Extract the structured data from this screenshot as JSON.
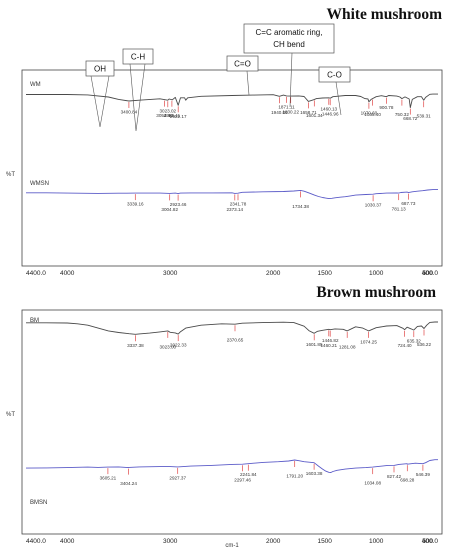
{
  "colors": {
    "sample_1": "#4a4a4a",
    "sample_2": "#5b5bc8",
    "peak_marker": "#e04545",
    "frame": "#444444"
  },
  "chart_data": [
    {
      "type": "line",
      "title": "White mushroom",
      "xlabel": "",
      "ylabel": "%T",
      "xlim": [
        4400,
        400
      ],
      "xticks": [
        "4400.0",
        "4000",
        "3000",
        "2000",
        "1500",
        "1000",
        "500",
        "400.0"
      ],
      "series": [
        {
          "name": "WM",
          "points": [
            [
              4400,
              0.95
            ],
            [
              4000,
              0.95
            ],
            [
              3800,
              0.93
            ],
            [
              3600,
              0.82
            ],
            [
              3500,
              0.7
            ],
            [
              3400.84,
              0.62
            ],
            [
              3300,
              0.66
            ],
            [
              3100,
              0.73
            ],
            [
              3023,
              0.66
            ],
            [
              3010,
              0.72
            ],
            [
              2980,
              0.68
            ],
            [
              2950,
              0.8
            ],
            [
              2922.17,
              0.4
            ],
            [
              2900,
              0.78
            ],
            [
              2860,
              0.78
            ],
            [
              2850,
              0.66
            ],
            [
              2830,
              0.78
            ],
            [
              2700,
              0.86
            ],
            [
              2400,
              0.9
            ],
            [
              2200,
              0.92
            ],
            [
              2000,
              0.94
            ],
            [
              1940.08,
              0.86
            ],
            [
              1900,
              0.92
            ],
            [
              1871.11,
              0.88
            ],
            [
              1830.22,
              0.87
            ],
            [
              1750,
              0.88
            ],
            [
              1700,
              0.85
            ],
            [
              1658.71,
              0.6
            ],
            [
              1610,
              0.68
            ],
            [
              1600.34,
              0.7
            ],
            [
              1580,
              0.74
            ],
            [
              1520,
              0.77
            ],
            [
              1460.13,
              0.78
            ],
            [
              1446,
              0.76
            ],
            [
              1420,
              0.84
            ],
            [
              1300,
              0.9
            ],
            [
              1200,
              0.9
            ],
            [
              1150,
              0.85
            ],
            [
              1110,
              0.74
            ],
            [
              1080,
              0.72
            ],
            [
              1070.6,
              0.58
            ],
            [
              1050,
              0.7
            ],
            [
              1000,
              0.84
            ],
            [
              950,
              0.89
            ],
            [
              900.78,
              0.84
            ],
            [
              880,
              0.9
            ],
            [
              800,
              0.87
            ],
            [
              770,
              0.82
            ],
            [
              750.32,
              0.74
            ],
            [
              720,
              0.83
            ],
            [
              680,
              0.72
            ],
            [
              668.72,
              0.28
            ],
            [
              650,
              0.7
            ],
            [
              600,
              0.84
            ],
            [
              560,
              0.84
            ],
            [
              539.31,
              0.66
            ],
            [
              520,
              0.8
            ],
            [
              480,
              0.96
            ],
            [
              450,
              0.97
            ],
            [
              400,
              0.97
            ]
          ],
          "peak_labels": [
            "3400.84",
            "3054.60",
            "3023.02",
            "2983.41",
            "2922.17",
            "1940.08",
            "1871.11",
            "1830.22",
            "1658.71",
            "1601.34",
            "1460.13",
            "1446.96",
            "1070.60",
            "1035.40",
            "900.78",
            "750.32",
            "668.72",
            "539.31"
          ]
        },
        {
          "name": "WMSN",
          "points": [
            [
              4400,
              0.42
            ],
            [
              4200,
              0.42
            ],
            [
              4000,
              0.4
            ],
            [
              3700,
              0.38
            ],
            [
              3500,
              0.39
            ],
            [
              3339.16,
              0.4
            ],
            [
              3200,
              0.4
            ],
            [
              3100,
              0.4
            ],
            [
              3004.82,
              0.38
            ],
            [
              2950,
              0.4
            ],
            [
              2923.46,
              0.37
            ],
            [
              2900,
              0.4
            ],
            [
              2800,
              0.41
            ],
            [
              2600,
              0.41
            ],
            [
              2400,
              0.42
            ],
            [
              2373.14,
              0.38
            ],
            [
              2341.78,
              0.39
            ],
            [
              2300,
              0.45
            ],
            [
              2100,
              0.48
            ],
            [
              1900,
              0.5
            ],
            [
              1800,
              0.53
            ],
            [
              1734.38,
              0.57
            ],
            [
              1700,
              0.52
            ],
            [
              1650,
              0.4
            ],
            [
              1600,
              0.27
            ],
            [
              1560,
              0.18
            ],
            [
              1520,
              0.12
            ],
            [
              1490,
              0.08
            ],
            [
              1460,
              0.05
            ],
            [
              1430,
              0.07
            ],
            [
              1400,
              0.1
            ],
            [
              1350,
              0.14
            ],
            [
              1300,
              0.17
            ],
            [
              1250,
              0.22
            ],
            [
              1200,
              0.27
            ],
            [
              1100,
              0.31
            ],
            [
              1030.37,
              0.33
            ],
            [
              1000,
              0.36
            ],
            [
              900,
              0.4
            ],
            [
              800,
              0.41
            ],
            [
              781.13,
              0.4
            ],
            [
              760,
              0.44
            ],
            [
              700,
              0.46
            ],
            [
              687.73,
              0.43
            ],
            [
              650,
              0.48
            ],
            [
              600,
              0.52
            ],
            [
              550,
              0.55
            ],
            [
              500,
              0.6
            ],
            [
              450,
              0.62
            ],
            [
              400,
              0.62
            ]
          ],
          "peak_labels": [
            "3339.16",
            "3004.82",
            "2923.46",
            "2373.14",
            "2341.78",
            "1734.38",
            "1030.37",
            "781.13",
            "687.73"
          ]
        }
      ],
      "annotations": [
        "OH",
        "C-H",
        "C=O",
        "C=C aromatic ring,",
        "CH bend",
        "C-O"
      ]
    },
    {
      "type": "line",
      "title": "Brown mushroom",
      "xlabel": "cm-1",
      "ylabel": "%T",
      "xlim": [
        4400,
        400
      ],
      "xticks": [
        "4400.0",
        "4000",
        "3000",
        "2000",
        "1500",
        "1000",
        "500",
        "400.0"
      ],
      "series": [
        {
          "name": "BM",
          "points": [
            [
              4400,
              0.92
            ],
            [
              4200,
              0.92
            ],
            [
              4000,
              0.91
            ],
            [
              3900,
              0.87
            ],
            [
              3800,
              0.8
            ],
            [
              3700,
              0.66
            ],
            [
              3600,
              0.52
            ],
            [
              3500,
              0.44
            ],
            [
              3400,
              0.38
            ],
            [
              3337.38,
              0.35
            ],
            [
              3300,
              0.37
            ],
            [
              3200,
              0.41
            ],
            [
              3100,
              0.47
            ],
            [
              3023.0,
              0.52
            ],
            [
              3000,
              0.45
            ],
            [
              2950,
              0.42
            ],
            [
              2922.33,
              0.36
            ],
            [
              2900,
              0.48
            ],
            [
              2850,
              0.66
            ],
            [
              2700,
              0.8
            ],
            [
              2500,
              0.87
            ],
            [
              2370.65,
              0.85
            ],
            [
              2300,
              0.9
            ],
            [
              2100,
              0.93
            ],
            [
              1900,
              0.95
            ],
            [
              1800,
              0.93
            ],
            [
              1700,
              0.75
            ],
            [
              1650,
              0.52
            ],
            [
              1601.85,
              0.4
            ],
            [
              1570,
              0.5
            ],
            [
              1520,
              0.55
            ],
            [
              1460.21,
              0.6
            ],
            [
              1446.82,
              0.58
            ],
            [
              1400,
              0.62
            ],
            [
              1320,
              0.6
            ],
            [
              1281.08,
              0.52
            ],
            [
              1250,
              0.6
            ],
            [
              1200,
              0.72
            ],
            [
              1130,
              0.66
            ],
            [
              1074.25,
              0.52
            ],
            [
              1000,
              0.68
            ],
            [
              900,
              0.76
            ],
            [
              800,
              0.78
            ],
            [
              740,
              0.65
            ],
            [
              724.4,
              0.58
            ],
            [
              700,
              0.7
            ],
            [
              660,
              0.62
            ],
            [
              635.32,
              0.56
            ],
            [
              600,
              0.74
            ],
            [
              560,
              0.76
            ],
            [
              536.22,
              0.64
            ],
            [
              510,
              0.8
            ],
            [
              480,
              0.94
            ],
            [
              430,
              0.96
            ],
            [
              400,
              0.96
            ]
          ],
          "peak_labels": [
            "3337.38",
            "3023.00",
            "2922.33",
            "2370.65",
            "1601.85",
            "1460.21",
            "1446.82",
            "1281.08",
            "1074.25",
            "724.40",
            "635.32",
            "536.22"
          ]
        },
        {
          "name": "BMSN",
          "points": [
            [
              4400,
              0.22
            ],
            [
              4200,
              0.23
            ],
            [
              4000,
              0.24
            ],
            [
              3800,
              0.26
            ],
            [
              3700,
              0.25
            ],
            [
              3605.21,
              0.26
            ],
            [
              3500,
              0.27
            ],
            [
              3400,
              0.25
            ],
            [
              3404.24,
              0.24
            ],
            [
              3300,
              0.27
            ],
            [
              3100,
              0.28
            ],
            [
              3000,
              0.28
            ],
            [
              2927.37,
              0.27
            ],
            [
              2800,
              0.3
            ],
            [
              2600,
              0.33
            ],
            [
              2400,
              0.37
            ],
            [
              2297.46,
              0.38
            ],
            [
              2241.84,
              0.4
            ],
            [
              2100,
              0.45
            ],
            [
              1950,
              0.48
            ],
            [
              1850,
              0.51
            ],
            [
              1791.2,
              0.55
            ],
            [
              1750,
              0.52
            ],
            [
              1700,
              0.48
            ],
            [
              1603.38,
              0.44
            ],
            [
              1560,
              0.3
            ],
            [
              1520,
              0.18
            ],
            [
              1490,
              0.1
            ],
            [
              1460,
              0.05
            ],
            [
              1440,
              0.04
            ],
            [
              1420,
              0.08
            ],
            [
              1380,
              0.13
            ],
            [
              1300,
              0.18
            ],
            [
              1200,
              0.22
            ],
            [
              1100,
              0.24
            ],
            [
              1034.08,
              0.26
            ],
            [
              900,
              0.32
            ],
            [
              827.42,
              0.33
            ],
            [
              780,
              0.37
            ],
            [
              700,
              0.4
            ],
            [
              698.28,
              0.38
            ],
            [
              620,
              0.42
            ],
            [
              546.39,
              0.4
            ],
            [
              520,
              0.44
            ],
            [
              480,
              0.53
            ],
            [
              430,
              0.56
            ],
            [
              400,
              0.56
            ]
          ],
          "peak_labels": [
            "3605.21",
            "3404.24",
            "2927.37",
            "2297.46",
            "2241.84",
            "1791.20",
            "1603.38",
            "1034.08",
            "827.42",
            "698.28",
            "546.39"
          ]
        }
      ],
      "annotations": []
    }
  ]
}
